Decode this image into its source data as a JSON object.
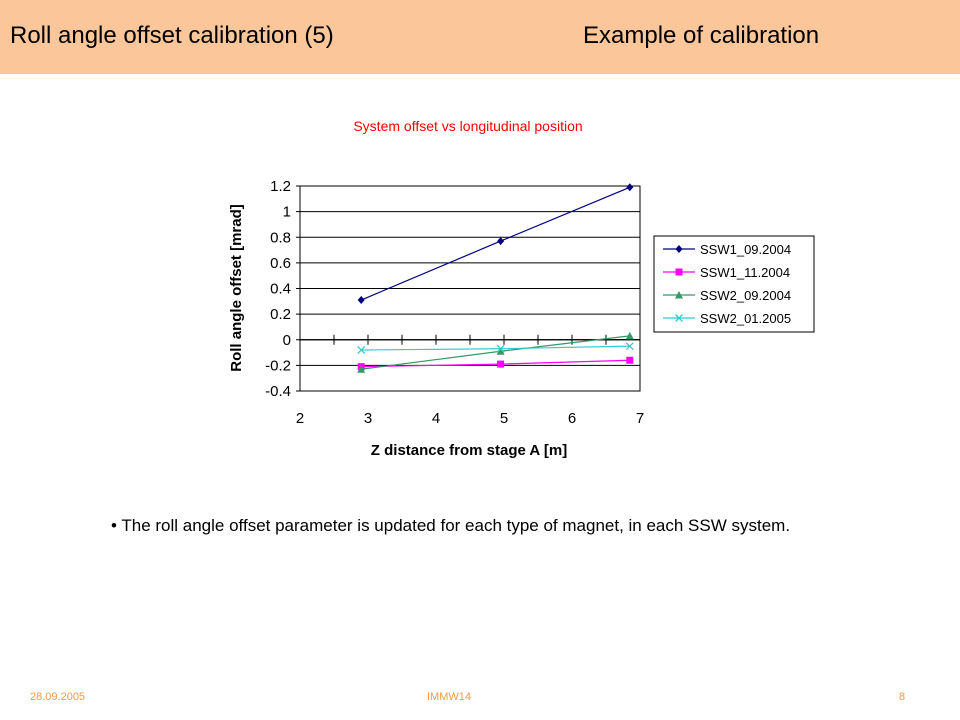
{
  "header": {
    "title": "Roll angle offset calibration (5)",
    "subtitle": "Example of calibration",
    "background": "#fbc79a"
  },
  "body": {
    "bullet": "• The roll angle offset parameter is updated for each type of magnet, in each SSW system."
  },
  "footer": {
    "date": "28.09.2005",
    "event": "IMMW14",
    "page": "8",
    "color": "#f09a4a"
  },
  "chart_data": {
    "type": "scatter",
    "title": "System offset vs longitudinal position",
    "xlabel": "Z distance from stage A [m]",
    "ylabel": "Roll angle offset [mrad]",
    "xlim": [
      2,
      7
    ],
    "ylim": [
      -0.4,
      1.2
    ],
    "xticks": [
      "2",
      "3",
      "4",
      "5",
      "6",
      "7"
    ],
    "yticks": [
      "1.2",
      "1",
      "0.8",
      "0.6",
      "0.4",
      "0.2",
      "0",
      "-0.2",
      "-0.4"
    ],
    "grid": true,
    "legend": "right",
    "series": [
      {
        "name": "SSW1_09.2004",
        "color": "#000080",
        "marker": "diamond",
        "x": [
          2.9,
          4.95,
          6.85
        ],
        "y": [
          0.31,
          0.77,
          1.19
        ]
      },
      {
        "name": "SSW1_11.2004",
        "color": "#ff00ff",
        "marker": "square",
        "x": [
          2.9,
          4.95,
          6.85
        ],
        "y": [
          -0.21,
          -0.19,
          -0.16
        ]
      },
      {
        "name": "SSW2_09.2004",
        "color": "#339966",
        "marker": "triangle",
        "x": [
          2.9,
          4.95,
          6.85
        ],
        "y": [
          -0.23,
          -0.09,
          0.03
        ]
      },
      {
        "name": "SSW2_01.2005",
        "color": "#33cccc",
        "marker": "x",
        "x": [
          2.9,
          4.95,
          6.85
        ],
        "y": [
          -0.08,
          -0.07,
          -0.05
        ]
      }
    ]
  }
}
